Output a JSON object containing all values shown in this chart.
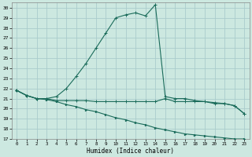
{
  "xlabel": "Humidex (Indice chaleur)",
  "bg_color": "#cce8e0",
  "grid_color": "#aacccc",
  "line_color": "#1a6b5a",
  "xlim": [
    -0.5,
    23.5
  ],
  "ylim": [
    17,
    30.5
  ],
  "yticks": [
    17,
    18,
    19,
    20,
    21,
    22,
    23,
    24,
    25,
    26,
    27,
    28,
    29,
    30
  ],
  "xticks": [
    0,
    1,
    2,
    3,
    4,
    5,
    6,
    7,
    8,
    9,
    10,
    11,
    12,
    13,
    14,
    15,
    16,
    17,
    18,
    19,
    20,
    21,
    22,
    23
  ],
  "line1_x": [
    0,
    1,
    2,
    3,
    4,
    5,
    6,
    7,
    8,
    9,
    10,
    11,
    12,
    13,
    14,
    15,
    16,
    17,
    18,
    19,
    20,
    21,
    22,
    23
  ],
  "line1_y": [
    21.8,
    21.3,
    21.0,
    21.0,
    21.2,
    22.0,
    23.2,
    24.5,
    26.0,
    27.5,
    29.0,
    29.3,
    29.5,
    29.2,
    30.3,
    21.2,
    21.0,
    21.0,
    20.8,
    20.7,
    20.6,
    20.5,
    20.3,
    19.5
  ],
  "line2_x": [
    0,
    1,
    2,
    3,
    4,
    5,
    6,
    7,
    8,
    9,
    10,
    11,
    12,
    13,
    14,
    15,
    16,
    17,
    18,
    19,
    20,
    21,
    22,
    23
  ],
  "line2_y": [
    21.8,
    21.3,
    21.0,
    21.0,
    20.8,
    20.8,
    20.8,
    20.8,
    20.7,
    20.7,
    20.7,
    20.7,
    20.7,
    20.7,
    20.7,
    21.0,
    20.7,
    20.7,
    20.7,
    20.7,
    20.5,
    20.5,
    20.3,
    19.5
  ],
  "line3_x": [
    0,
    1,
    2,
    3,
    4,
    5,
    6,
    7,
    8,
    9,
    10,
    11,
    12,
    13,
    14,
    15,
    16,
    17,
    18,
    19,
    20,
    21,
    22,
    23
  ],
  "line3_y": [
    21.8,
    21.3,
    21.0,
    20.9,
    20.7,
    20.4,
    20.2,
    19.9,
    19.7,
    19.4,
    19.1,
    18.9,
    18.6,
    18.4,
    18.1,
    17.9,
    17.7,
    17.5,
    17.4,
    17.3,
    17.2,
    17.1,
    17.0,
    17.0
  ]
}
